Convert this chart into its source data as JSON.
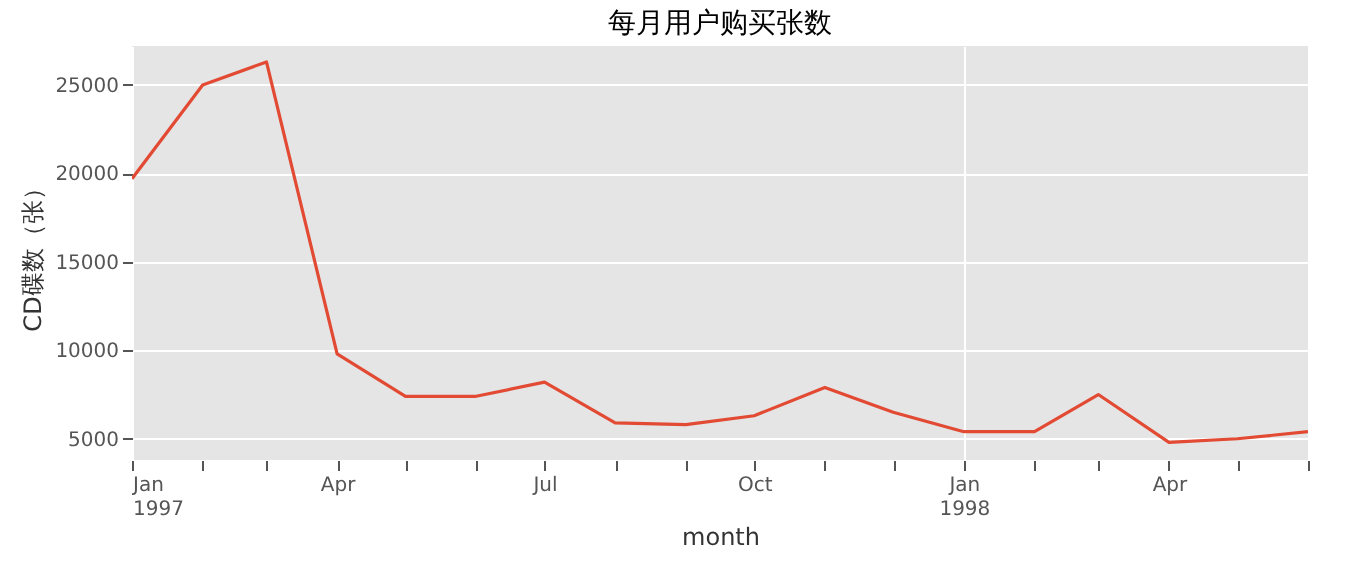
{
  "chart_data": {
    "type": "line",
    "title": "每月用户购买张数",
    "xlabel": "month",
    "ylabel": "CD碟数（张）",
    "x": [
      "1997-01",
      "1997-02",
      "1997-03",
      "1997-04",
      "1997-05",
      "1997-06",
      "1997-07",
      "1997-08",
      "1997-09",
      "1997-10",
      "1997-11",
      "1997-12",
      "1998-01",
      "1998-02",
      "1998-03",
      "1998-04",
      "1998-05",
      "1998-06"
    ],
    "series": [
      {
        "color": "#e24a33",
        "values": [
          19700,
          25000,
          26300,
          9800,
          7400,
          7400,
          8200,
          5900,
          5800,
          6300,
          7900,
          6500,
          5400,
          5400,
          7500,
          4800,
          5000,
          5400
        ]
      }
    ],
    "xlim": [
      "1997-01",
      "1998-06"
    ],
    "xticks": [
      {
        "value": "1997-01",
        "label": "Jan\n1997"
      },
      {
        "value": "1997-02",
        "label": null
      },
      {
        "value": "1997-03",
        "label": null
      },
      {
        "value": "1997-04",
        "label": "Apr"
      },
      {
        "value": "1997-05",
        "label": null
      },
      {
        "value": "1997-06",
        "label": null
      },
      {
        "value": "1997-07",
        "label": "Jul"
      },
      {
        "value": "1997-08",
        "label": null
      },
      {
        "value": "1997-09",
        "label": null
      },
      {
        "value": "1997-10",
        "label": "Oct"
      },
      {
        "value": "1997-11",
        "label": null
      },
      {
        "value": "1997-12",
        "label": null
      },
      {
        "value": "1998-01",
        "label": "Jan\n1998"
      },
      {
        "value": "1998-02",
        "label": null
      },
      {
        "value": "1998-03",
        "label": null
      },
      {
        "value": "1998-04",
        "label": "Apr"
      },
      {
        "value": "1998-05",
        "label": null
      },
      {
        "value": "1998-06",
        "label": null
      }
    ],
    "ylim": [
      3800,
      27200
    ],
    "yticks": [
      5000,
      10000,
      15000,
      20000,
      25000
    ],
    "grid": true,
    "line_style": "solid",
    "marker": "none"
  }
}
